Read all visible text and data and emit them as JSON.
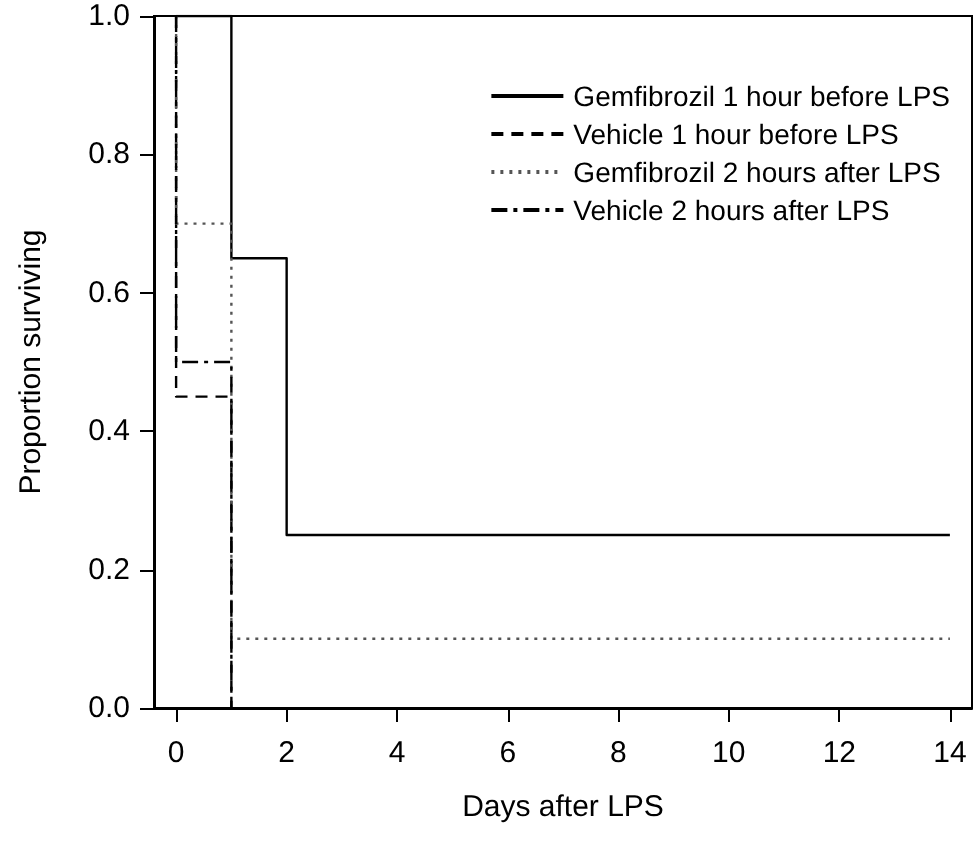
{
  "chart_data": {
    "type": "step",
    "xlabel": "Days after LPS",
    "ylabel": "Proportion surviving",
    "xlim": [
      -0.4,
      14.4
    ],
    "ylim": [
      0,
      1
    ],
    "xticks": [
      0,
      2,
      4,
      6,
      8,
      10,
      12,
      14
    ],
    "yticks": [
      {
        "value": 0,
        "label": "0.0"
      },
      {
        "value": 0.2,
        "label": "0.2"
      },
      {
        "value": 0.4,
        "label": "0.4"
      },
      {
        "value": 0.6,
        "label": "0.6"
      },
      {
        "value": 0.8,
        "label": "0.8"
      },
      {
        "value": 1,
        "label": "1.0"
      }
    ],
    "grid": false,
    "legend": "top right",
    "marker": "none",
    "series": [
      {
        "name": "Gemfibrozil 1 hour before LPS",
        "color": "#000000",
        "line_style": "solid",
        "x": [
          0,
          1,
          2,
          14
        ],
        "values": [
          1,
          0.65,
          0.25,
          0.25
        ]
      },
      {
        "name": "Vehicle 1 hour before LPS",
        "color": "#000000",
        "line_style": "dashed",
        "x": [
          0,
          0,
          1
        ],
        "values": [
          1,
          0.45,
          0
        ]
      },
      {
        "name": "Gemfibrozil 2 hours after LPS",
        "color": "#555555",
        "line_style": "dotted",
        "x": [
          0,
          0,
          1,
          14
        ],
        "values": [
          1,
          0.7,
          0.1,
          0.1
        ]
      },
      {
        "name": "Vehicle 2 hours after LPS",
        "color": "#000000",
        "line_style": "dashdot",
        "x": [
          0,
          0,
          1
        ],
        "values": [
          1,
          0.5,
          0
        ]
      }
    ]
  }
}
